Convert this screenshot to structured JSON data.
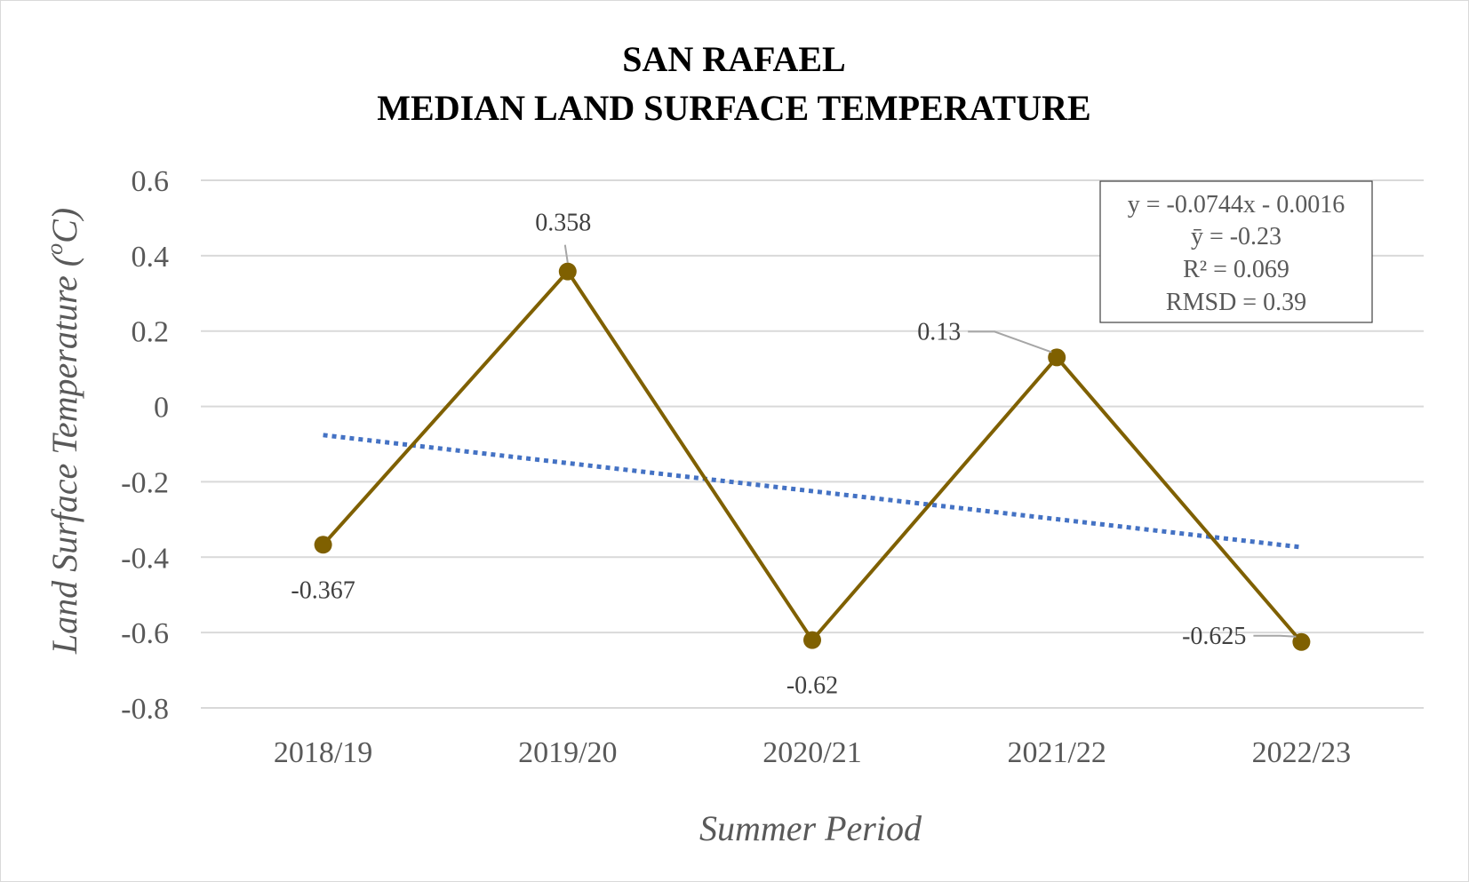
{
  "chart_data": {
    "type": "line",
    "title_lines": [
      "SAN RAFAEL",
      "MEDIAN LAND SURFACE TEMPERATURE"
    ],
    "xlabel": "Summer Period",
    "ylabel_prefix": "Land Surface Temperature (",
    "ylabel_sup": "o",
    "ylabel_suffix": "C)",
    "categories": [
      "2018/19",
      "2019/20",
      "2020/21",
      "2021/22",
      "2022/23"
    ],
    "series": [
      {
        "values": [
          -0.367,
          0.358,
          -0.62,
          0.13,
          -0.625
        ],
        "labels": [
          "-0.367",
          "0.358",
          "-0.62",
          "0.13",
          "-0.625"
        ],
        "color": "#7f6000"
      }
    ],
    "trendline": {
      "type": "linear",
      "slope": -0.0744,
      "intercept": -0.0016,
      "color": "#4472c4",
      "style": "dotted"
    },
    "ylim": [
      -0.8,
      0.6
    ],
    "yticks": [
      0.6,
      0.4,
      0.2,
      0,
      -0.2,
      -0.4,
      -0.6,
      -0.8
    ],
    "ytick_labels": [
      "0.6",
      "0.4",
      "0.2",
      "0",
      "-0.2",
      "-0.4",
      "-0.6",
      "-0.8"
    ],
    "grid": true,
    "legend": "none",
    "stats_box": {
      "placement": "top-right",
      "lines": [
        "y = -0.0744x - 0.0016",
        "ȳ = -0.23",
        "R² = 0.069",
        "RMSD = 0.39"
      ]
    }
  }
}
